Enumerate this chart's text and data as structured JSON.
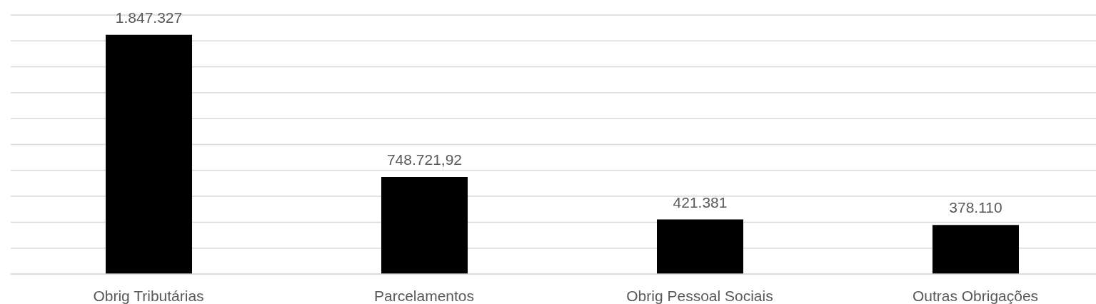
{
  "chart_data": {
    "type": "bar",
    "categories": [
      "Obrig Tributárias",
      "Parcelamentos",
      "Obrig Pessoal Sociais",
      "Outras Obrigações"
    ],
    "values": [
      1847327,
      748721.92,
      421381,
      378110
    ],
    "value_labels": [
      "1.847.327",
      "748.721,92",
      "421.381",
      "378.110"
    ],
    "color": "#000000",
    "ylim": [
      0,
      2000000
    ],
    "yticks": [
      {
        "value": 0,
        "label": null
      },
      {
        "value": 200000,
        "label": null
      },
      {
        "value": 400000,
        "label": null
      },
      {
        "value": 600000,
        "label": null
      },
      {
        "value": 800000,
        "label": null
      },
      {
        "value": 1000000,
        "label": null
      },
      {
        "value": 1200000,
        "label": null
      },
      {
        "value": 1400000,
        "label": null
      },
      {
        "value": 1600000,
        "label": null
      },
      {
        "value": 1800000,
        "label": null
      },
      {
        "value": 2000000,
        "label": null
      }
    ],
    "grid": "y",
    "tick_labels": "x"
  }
}
